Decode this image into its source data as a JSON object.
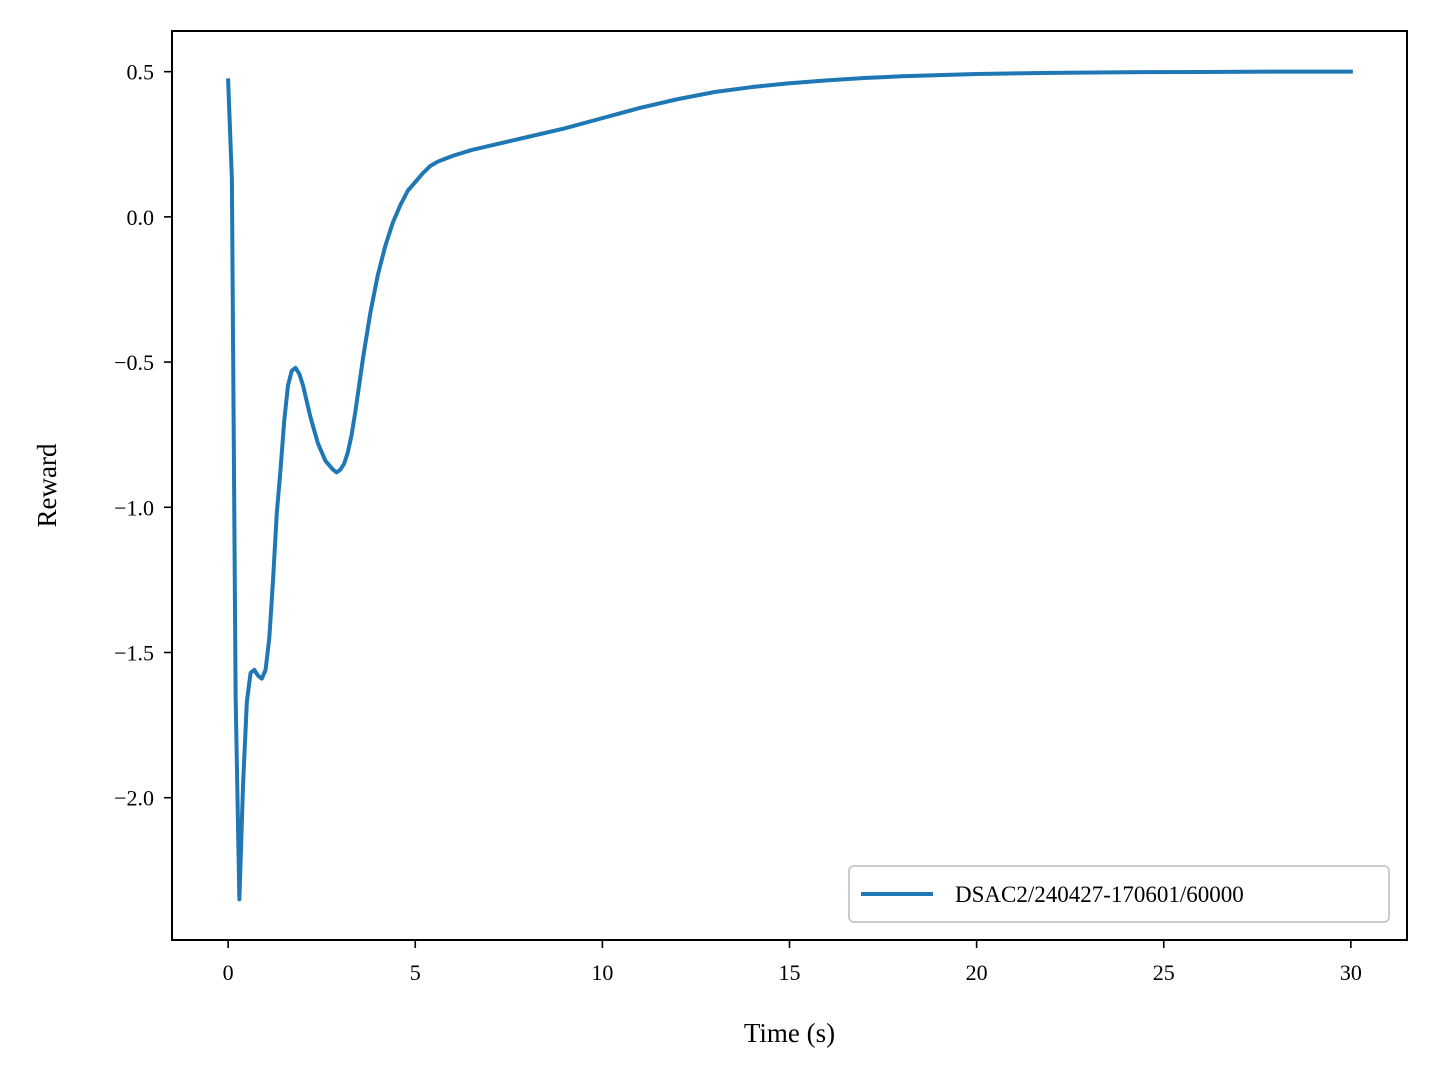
{
  "chart_data": {
    "type": "line",
    "title": "",
    "xlabel": "Time (s)",
    "ylabel": "Reward",
    "xlim": [
      -1.5,
      31.5
    ],
    "ylim": [
      -2.49,
      0.64
    ],
    "grid": false,
    "legend_position": "bottom-right",
    "x_ticks": [
      0,
      5,
      10,
      15,
      20,
      25,
      30
    ],
    "x_tick_labels": [
      "0",
      "5",
      "10",
      "15",
      "20",
      "25",
      "30"
    ],
    "y_ticks": [
      0.5,
      0.0,
      -0.5,
      -1.0,
      -1.5,
      -2.0
    ],
    "y_tick_labels": [
      "0.5",
      "0.0",
      "−0.5",
      "−1.0",
      "−1.5",
      "−2.0"
    ],
    "series": [
      {
        "name": "DSAC2/240427-170601/60000",
        "color": "#1f77b4",
        "x": [
          0,
          0.1,
          0.2,
          0.3,
          0.4,
          0.5,
          0.6,
          0.7,
          0.8,
          0.9,
          1.0,
          1.1,
          1.2,
          1.3,
          1.4,
          1.5,
          1.6,
          1.7,
          1.8,
          1.9,
          2.0,
          2.2,
          2.4,
          2.6,
          2.8,
          2.9,
          3.0,
          3.1,
          3.2,
          3.3,
          3.4,
          3.5,
          3.6,
          3.8,
          4.0,
          4.2,
          4.4,
          4.6,
          4.8,
          5.0,
          5.2,
          5.4,
          5.6,
          5.8,
          6.0,
          6.5,
          7.0,
          7.5,
          8.0,
          9.0,
          10.0,
          11.0,
          12.0,
          13.0,
          14.0,
          15.0,
          16.0,
          17.0,
          18.0,
          19.0,
          20.0,
          22.0,
          24.0,
          26.0,
          28.0,
          30.0
        ],
        "values": [
          0.47,
          0.13,
          -1.65,
          -2.35,
          -1.95,
          -1.67,
          -1.57,
          -1.56,
          -1.58,
          -1.59,
          -1.56,
          -1.45,
          -1.25,
          -1.02,
          -0.87,
          -0.7,
          -0.58,
          -0.53,
          -0.52,
          -0.54,
          -0.58,
          -0.69,
          -0.78,
          -0.84,
          -0.87,
          -0.88,
          -0.87,
          -0.85,
          -0.81,
          -0.75,
          -0.67,
          -0.58,
          -0.49,
          -0.33,
          -0.2,
          -0.1,
          -0.02,
          0.04,
          0.09,
          0.12,
          0.15,
          0.175,
          0.19,
          0.2,
          0.21,
          0.23,
          0.245,
          0.26,
          0.275,
          0.305,
          0.34,
          0.375,
          0.405,
          0.43,
          0.447,
          0.46,
          0.47,
          0.478,
          0.484,
          0.488,
          0.492,
          0.496,
          0.498,
          0.499,
          0.5,
          0.5
        ]
      }
    ]
  }
}
